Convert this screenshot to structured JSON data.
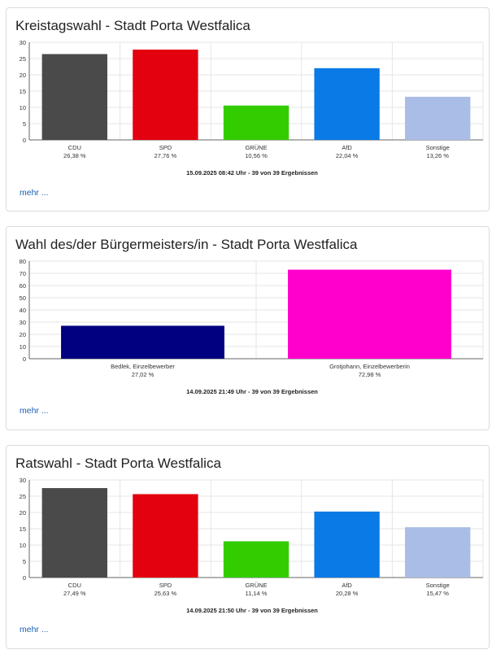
{
  "more_label": "mehr ...",
  "charts": [
    {
      "title": "Kreistagswahl - Stadt Porta Westfalica",
      "footer": "15.09.2025 08:42 Uhr - 39 von 39 Ergebnissen",
      "chart_data": {
        "type": "bar",
        "title": "Kreistagswahl - Stadt Porta Westfalica",
        "categories": [
          "CDU",
          "SPD",
          "GRÜNE",
          "AfD",
          "Sonstige"
        ],
        "values": [
          26.38,
          27.76,
          10.56,
          22.04,
          13.26
        ],
        "value_labels": [
          "26,38 %",
          "27,76 %",
          "10,56 %",
          "22,04 %",
          "13,26 %"
        ],
        "colors": [
          "#4a4a4a",
          "#e3000f",
          "#33cc00",
          "#0a7ae6",
          "#aabde6"
        ],
        "yticks": [
          0,
          5,
          10,
          15,
          20,
          25,
          30
        ],
        "ylim": [
          0,
          30
        ],
        "grid": true
      }
    },
    {
      "title": "Wahl des/der Bürgermeisters/in - Stadt Porta Westfalica",
      "footer": "14.09.2025 21:49 Uhr - 39 von 39 Ergebnissen",
      "chart_data": {
        "type": "bar",
        "title": "Wahl des/der Bürgermeisters/in - Stadt Porta Westfalica",
        "categories": [
          "Bedlek, Einzelbewerber",
          "Grotjohann, Einzelbewerberin"
        ],
        "values": [
          27.02,
          72.98
        ],
        "value_labels": [
          "27,02 %",
          "72,98 %"
        ],
        "colors": [
          "#000080",
          "#ff00cc"
        ],
        "yticks": [
          0,
          10,
          20,
          30,
          40,
          50,
          60,
          70,
          80
        ],
        "ylim": [
          0,
          80
        ],
        "grid": true
      }
    },
    {
      "title": "Ratswahl - Stadt Porta Westfalica",
      "footer": "14.09.2025 21:50 Uhr - 39 von 39 Ergebnissen",
      "chart_data": {
        "type": "bar",
        "title": "Ratswahl - Stadt Porta Westfalica",
        "categories": [
          "CDU",
          "SPD",
          "GRÜNE",
          "AfD",
          "Sonstige"
        ],
        "values": [
          27.49,
          25.63,
          11.14,
          20.28,
          15.47
        ],
        "value_labels": [
          "27,49 %",
          "25,63 %",
          "11,14 %",
          "20,28 %",
          "15,47 %"
        ],
        "colors": [
          "#4a4a4a",
          "#e3000f",
          "#33cc00",
          "#0a7ae6",
          "#aabde6"
        ],
        "yticks": [
          0,
          5,
          10,
          15,
          20,
          25,
          30
        ],
        "ylim": [
          0,
          30
        ],
        "grid": true
      }
    }
  ]
}
